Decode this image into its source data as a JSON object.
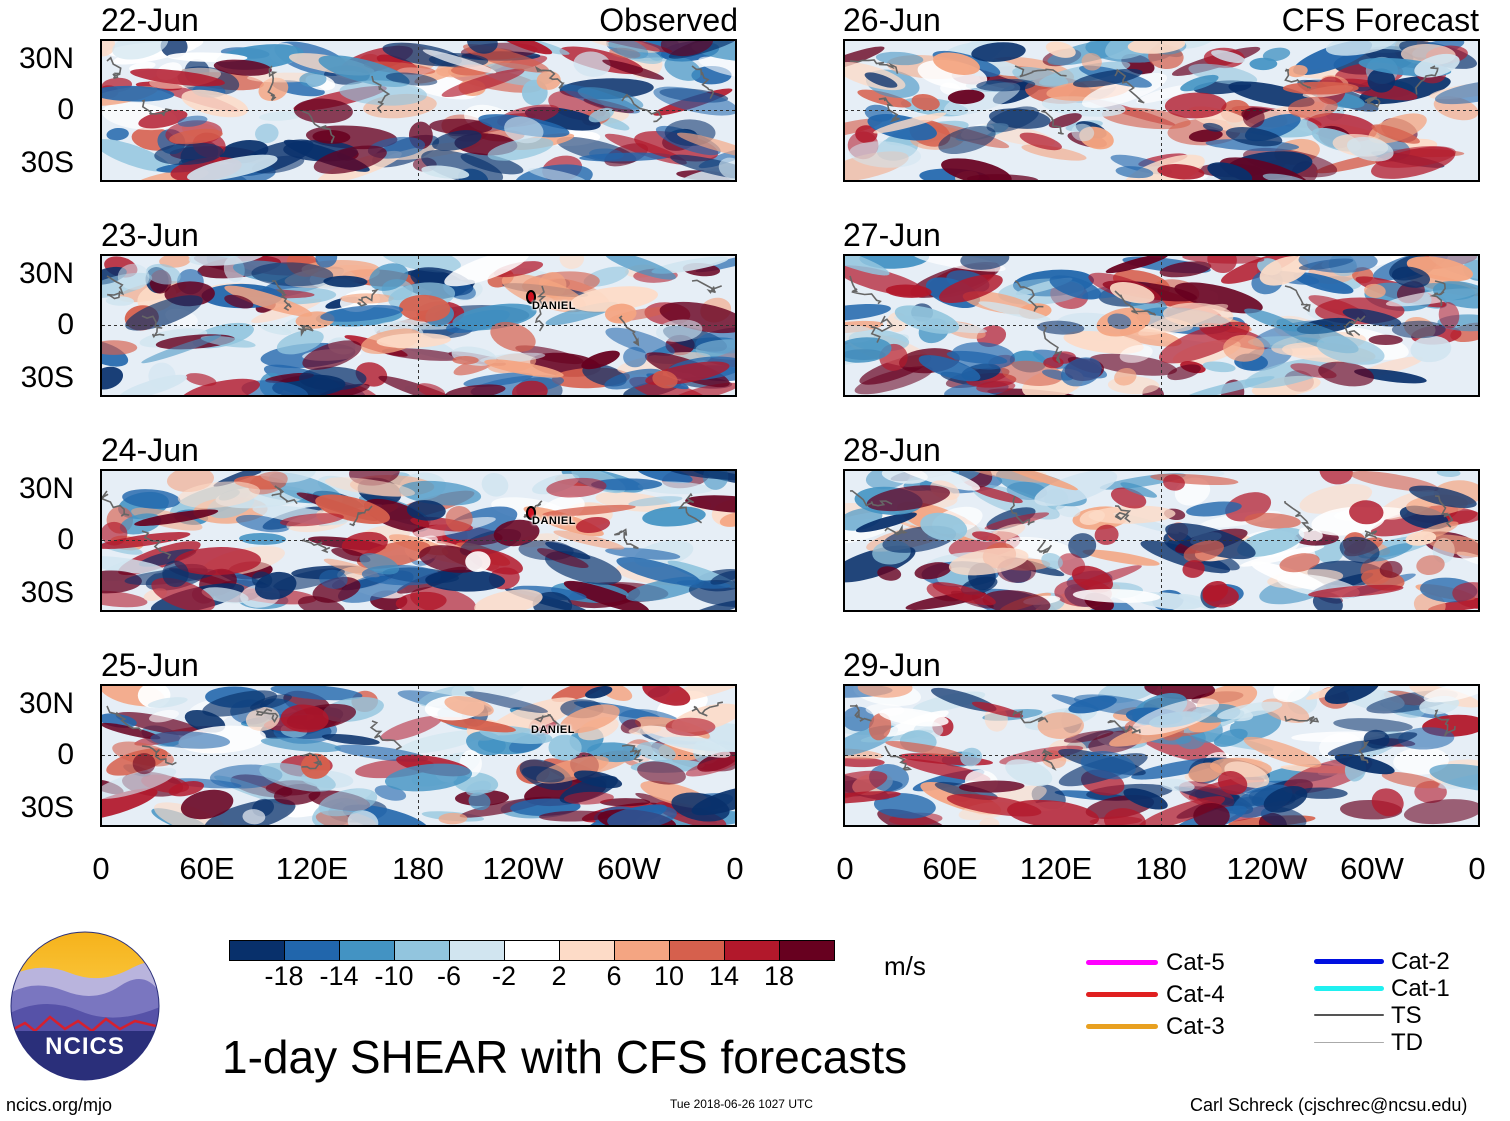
{
  "panels": {
    "observed_title": "Observed",
    "forecast_title": "CFS Forecast",
    "observed_dates": [
      "22-Jun",
      "23-Jun",
      "24-Jun",
      "25-Jun"
    ],
    "forecast_dates": [
      "26-Jun",
      "27-Jun",
      "28-Jun",
      "29-Jun"
    ]
  },
  "axes": {
    "lat_labels": [
      "30N",
      "0",
      "30S"
    ],
    "lon_labels": [
      "0",
      "60E",
      "120E",
      "180",
      "120W",
      "60W",
      "0"
    ]
  },
  "storm": {
    "name": "DANIEL",
    "label_23": "DANIEL",
    "label_24": "DANIEL",
    "label_25": "DANIEL"
  },
  "colorbar": {
    "ticks": [
      "-18",
      "-14",
      "-10",
      "-6",
      "-2",
      "2",
      "6",
      "10",
      "14",
      "18"
    ],
    "colors": [
      "#08306b",
      "#2166ac",
      "#4393c3",
      "#92c5de",
      "#d1e5f0",
      "#ffffff",
      "#fddbc7",
      "#f4a582",
      "#d6604d",
      "#b2182b",
      "#67001f"
    ],
    "units": "m/s"
  },
  "legend": {
    "left": [
      {
        "label": "Cat-5",
        "color": "#ff00ff"
      },
      {
        "label": "Cat-4",
        "color": "#e02020"
      },
      {
        "label": "Cat-3",
        "color": "#e8a020"
      }
    ],
    "right": [
      {
        "label": "Cat-2",
        "color": "#0010e0"
      },
      {
        "label": "Cat-1",
        "color": "#20f0f0"
      },
      {
        "label": "TS",
        "color": "#555555"
      },
      {
        "label": "TD",
        "color": "#aaaaaa"
      }
    ]
  },
  "logo": {
    "text": "NCICS"
  },
  "title": "1-day SHEAR with CFS forecasts",
  "footer": {
    "url": "ncics.org/mjo",
    "timestamp": "Tue 2018-06-26 1027 UTC",
    "credit": "Carl Schreck (cjschrec@ncsu.edu)"
  }
}
